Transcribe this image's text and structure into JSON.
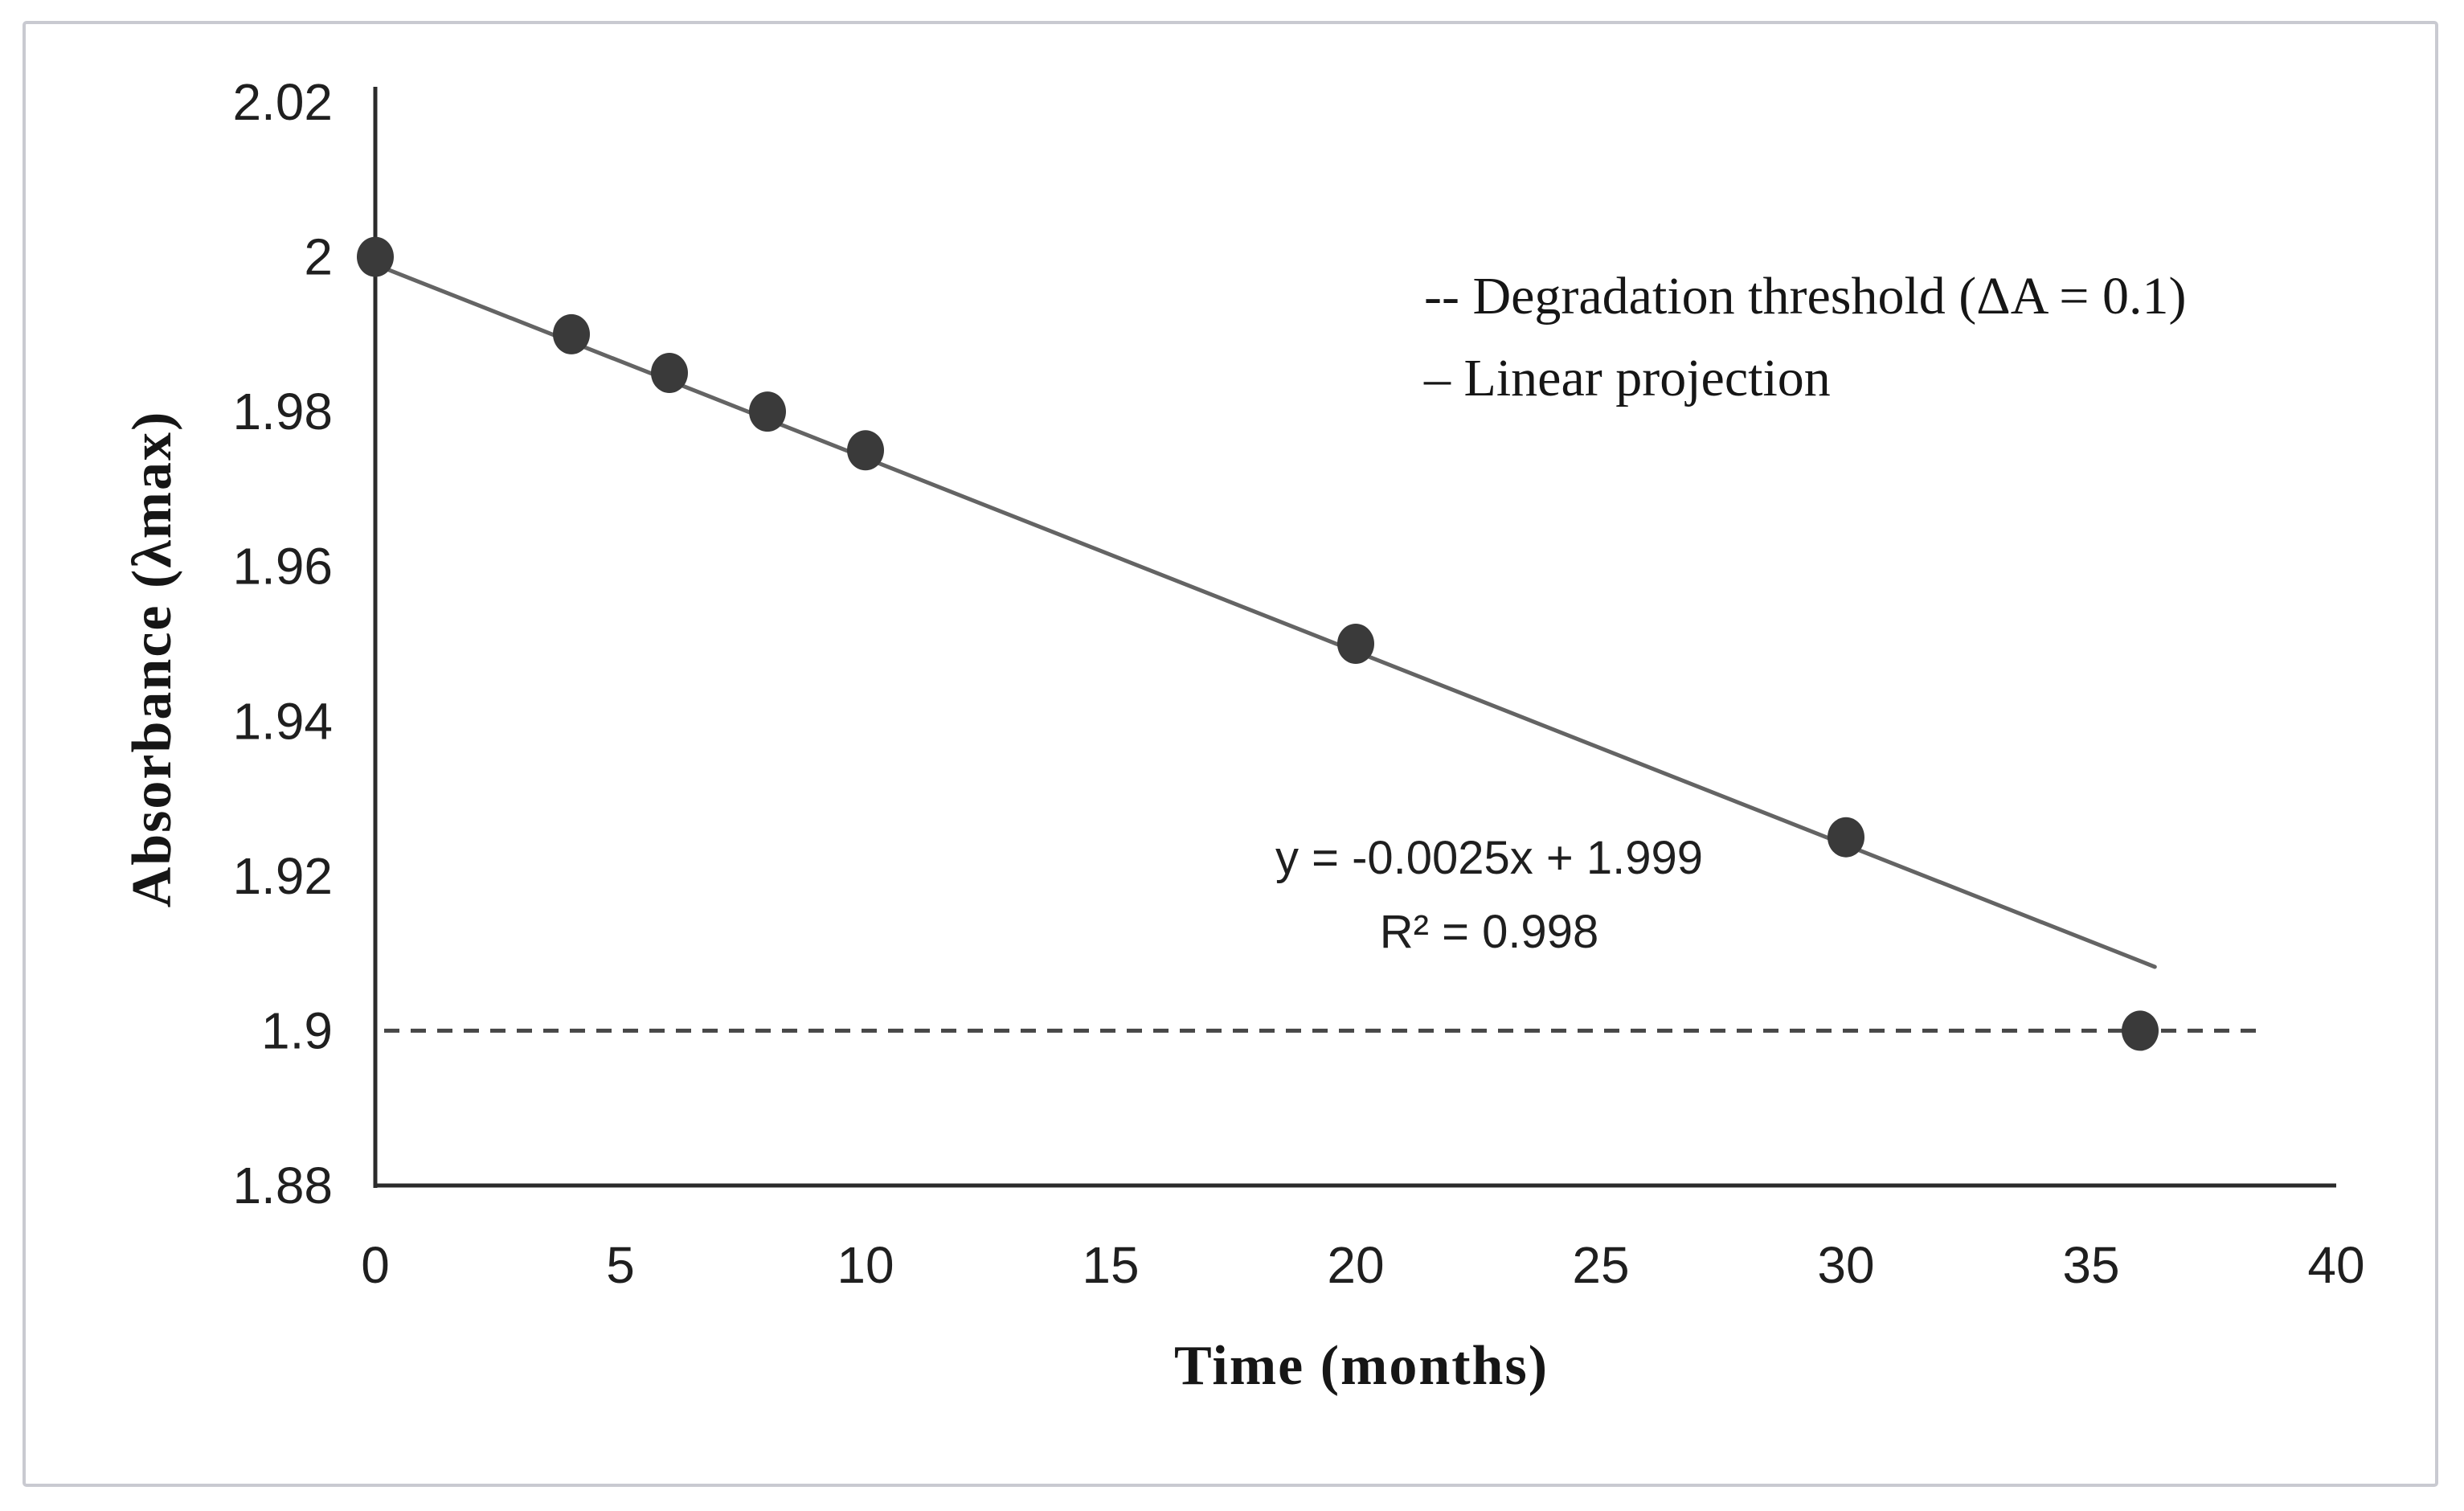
{
  "figure": {
    "background": "#ffffff",
    "border_color": "#c9cad1"
  },
  "chart_data": {
    "type": "scatter",
    "title": "",
    "xlabel": "Time (months)",
    "ylabel": "Absorbance (λmax)",
    "x": [
      0,
      4,
      6,
      8,
      10,
      20,
      30,
      36
    ],
    "y": [
      2.0,
      1.99,
      1.985,
      1.98,
      1.975,
      1.95,
      1.925,
      1.9
    ],
    "xlim": [
      0,
      40
    ],
    "ylim": [
      1.88,
      2.02
    ],
    "xtick_labels": [
      "0",
      "5",
      "10",
      "15",
      "20",
      "25",
      "30",
      "35",
      "40"
    ],
    "ytick_labels": [
      "2.02",
      "2",
      "1.98",
      "1.96",
      "1.94",
      "1.92",
      "1.9",
      "1.88"
    ],
    "grid": false,
    "legend_position": "upper-right-inside",
    "legend": [
      "-- Degradation threshold (ΔA = 0.1)",
      "– Linear projection"
    ],
    "trendline": {
      "slope": -0.0025,
      "intercept": 1.999,
      "x_start": 0,
      "x_end": 36.3,
      "equation": "y = -0.0025x + 1.999",
      "r_squared": "R² = 0.998",
      "color": "#646464"
    },
    "threshold": {
      "value": 1.9,
      "color": "#474747"
    },
    "point_color": "#3a3a3a",
    "axis_color": "#2b2b2b",
    "tick_color": "#1f1f1f"
  }
}
